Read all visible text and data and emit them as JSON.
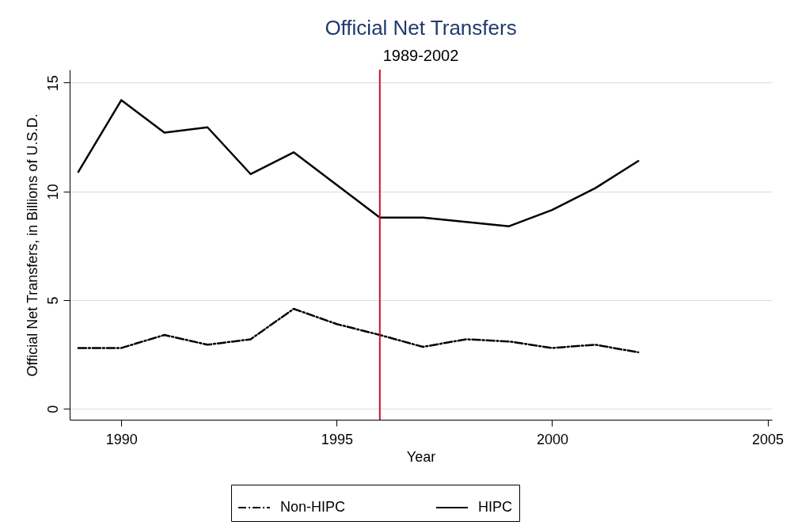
{
  "chart_data": {
    "type": "line",
    "title": "Official Net Transfers",
    "subtitle": "1989-2002",
    "xlabel": "Year",
    "ylabel": "Official Net Transfers, in Billions of U.S.D.",
    "x": [
      1989,
      1990,
      1991,
      1992,
      1993,
      1994,
      1995,
      1996,
      1997,
      1998,
      1999,
      2000,
      2001,
      2002
    ],
    "series": [
      {
        "name": "Non-HIPC",
        "color": "#000000",
        "line_style": "dashed",
        "values": [
          2.8,
          2.8,
          3.4,
          2.95,
          3.2,
          4.6,
          3.9,
          3.4,
          2.85,
          3.2,
          3.1,
          2.8,
          2.95,
          2.6
        ]
      },
      {
        "name": "HIPC",
        "color": "#000000",
        "line_style": "solid",
        "values": [
          10.9,
          14.2,
          12.7,
          12.95,
          10.8,
          11.8,
          10.3,
          8.8,
          8.8,
          8.6,
          8.4,
          9.15,
          10.15,
          11.4
        ]
      }
    ],
    "xlim": [
      1988.8,
      2005.1
    ],
    "xticks": [
      1990,
      1995,
      2000,
      2005
    ],
    "ylim": [
      -0.5,
      15.6
    ],
    "yticks": [
      0,
      5,
      10,
      15
    ],
    "grid": "y",
    "legend": "bottom",
    "marker": "none",
    "ref_lines": [
      {
        "axis": "x",
        "value": 1996,
        "label": null,
        "color": "#c8102e",
        "line_style": "solid"
      }
    ]
  }
}
